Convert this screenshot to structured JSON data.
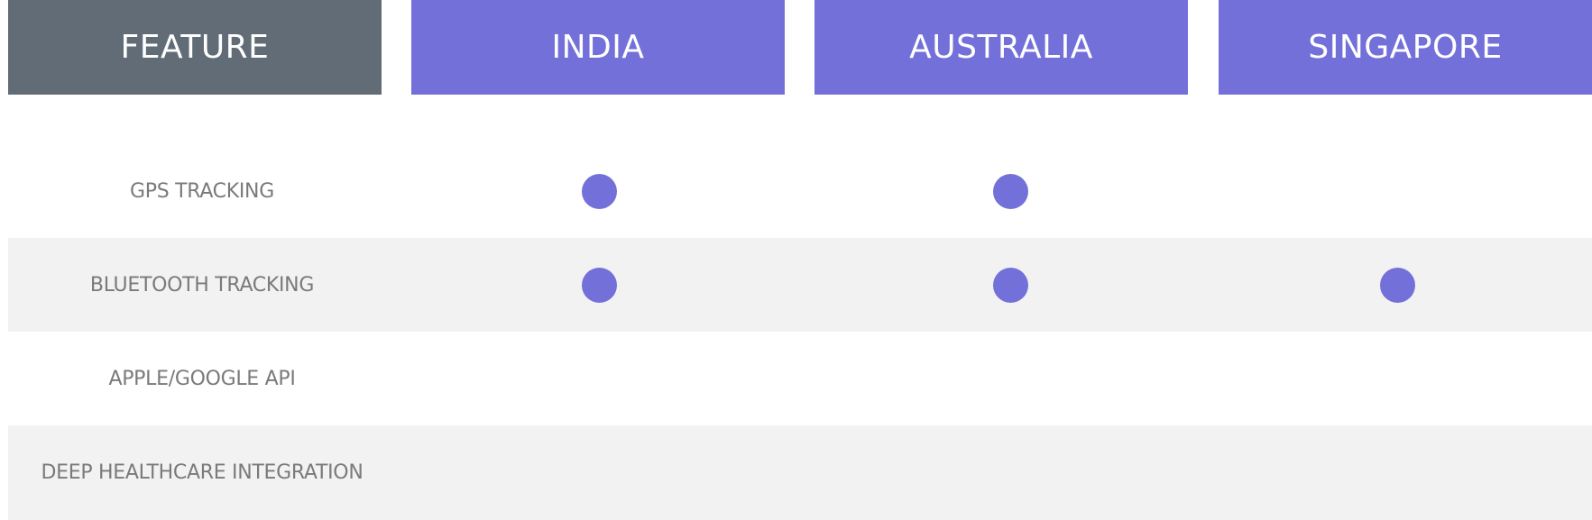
{
  "colors": {
    "feature_header_bg": "#616c77",
    "country_header_bg": "#7371d9",
    "dot": "#7371d9",
    "shaded_row_bg": "#f2f2f2",
    "label_text": "#7a7a7a"
  },
  "header": {
    "feature": "FEATURE",
    "countries": [
      "INDIA",
      "AUSTRALIA",
      "SINGAPORE"
    ]
  },
  "rows": [
    {
      "label": "GPS TRACKING",
      "supported": [
        true,
        true,
        false
      ]
    },
    {
      "label": "BLUETOOTH TRACKING",
      "supported": [
        true,
        true,
        true
      ]
    },
    {
      "label": "APPLE/GOOGLE API",
      "supported": [
        false,
        false,
        false
      ]
    },
    {
      "label": "DEEP HEALTHCARE INTEGRATION",
      "supported": [
        false,
        false,
        false
      ]
    }
  ]
}
